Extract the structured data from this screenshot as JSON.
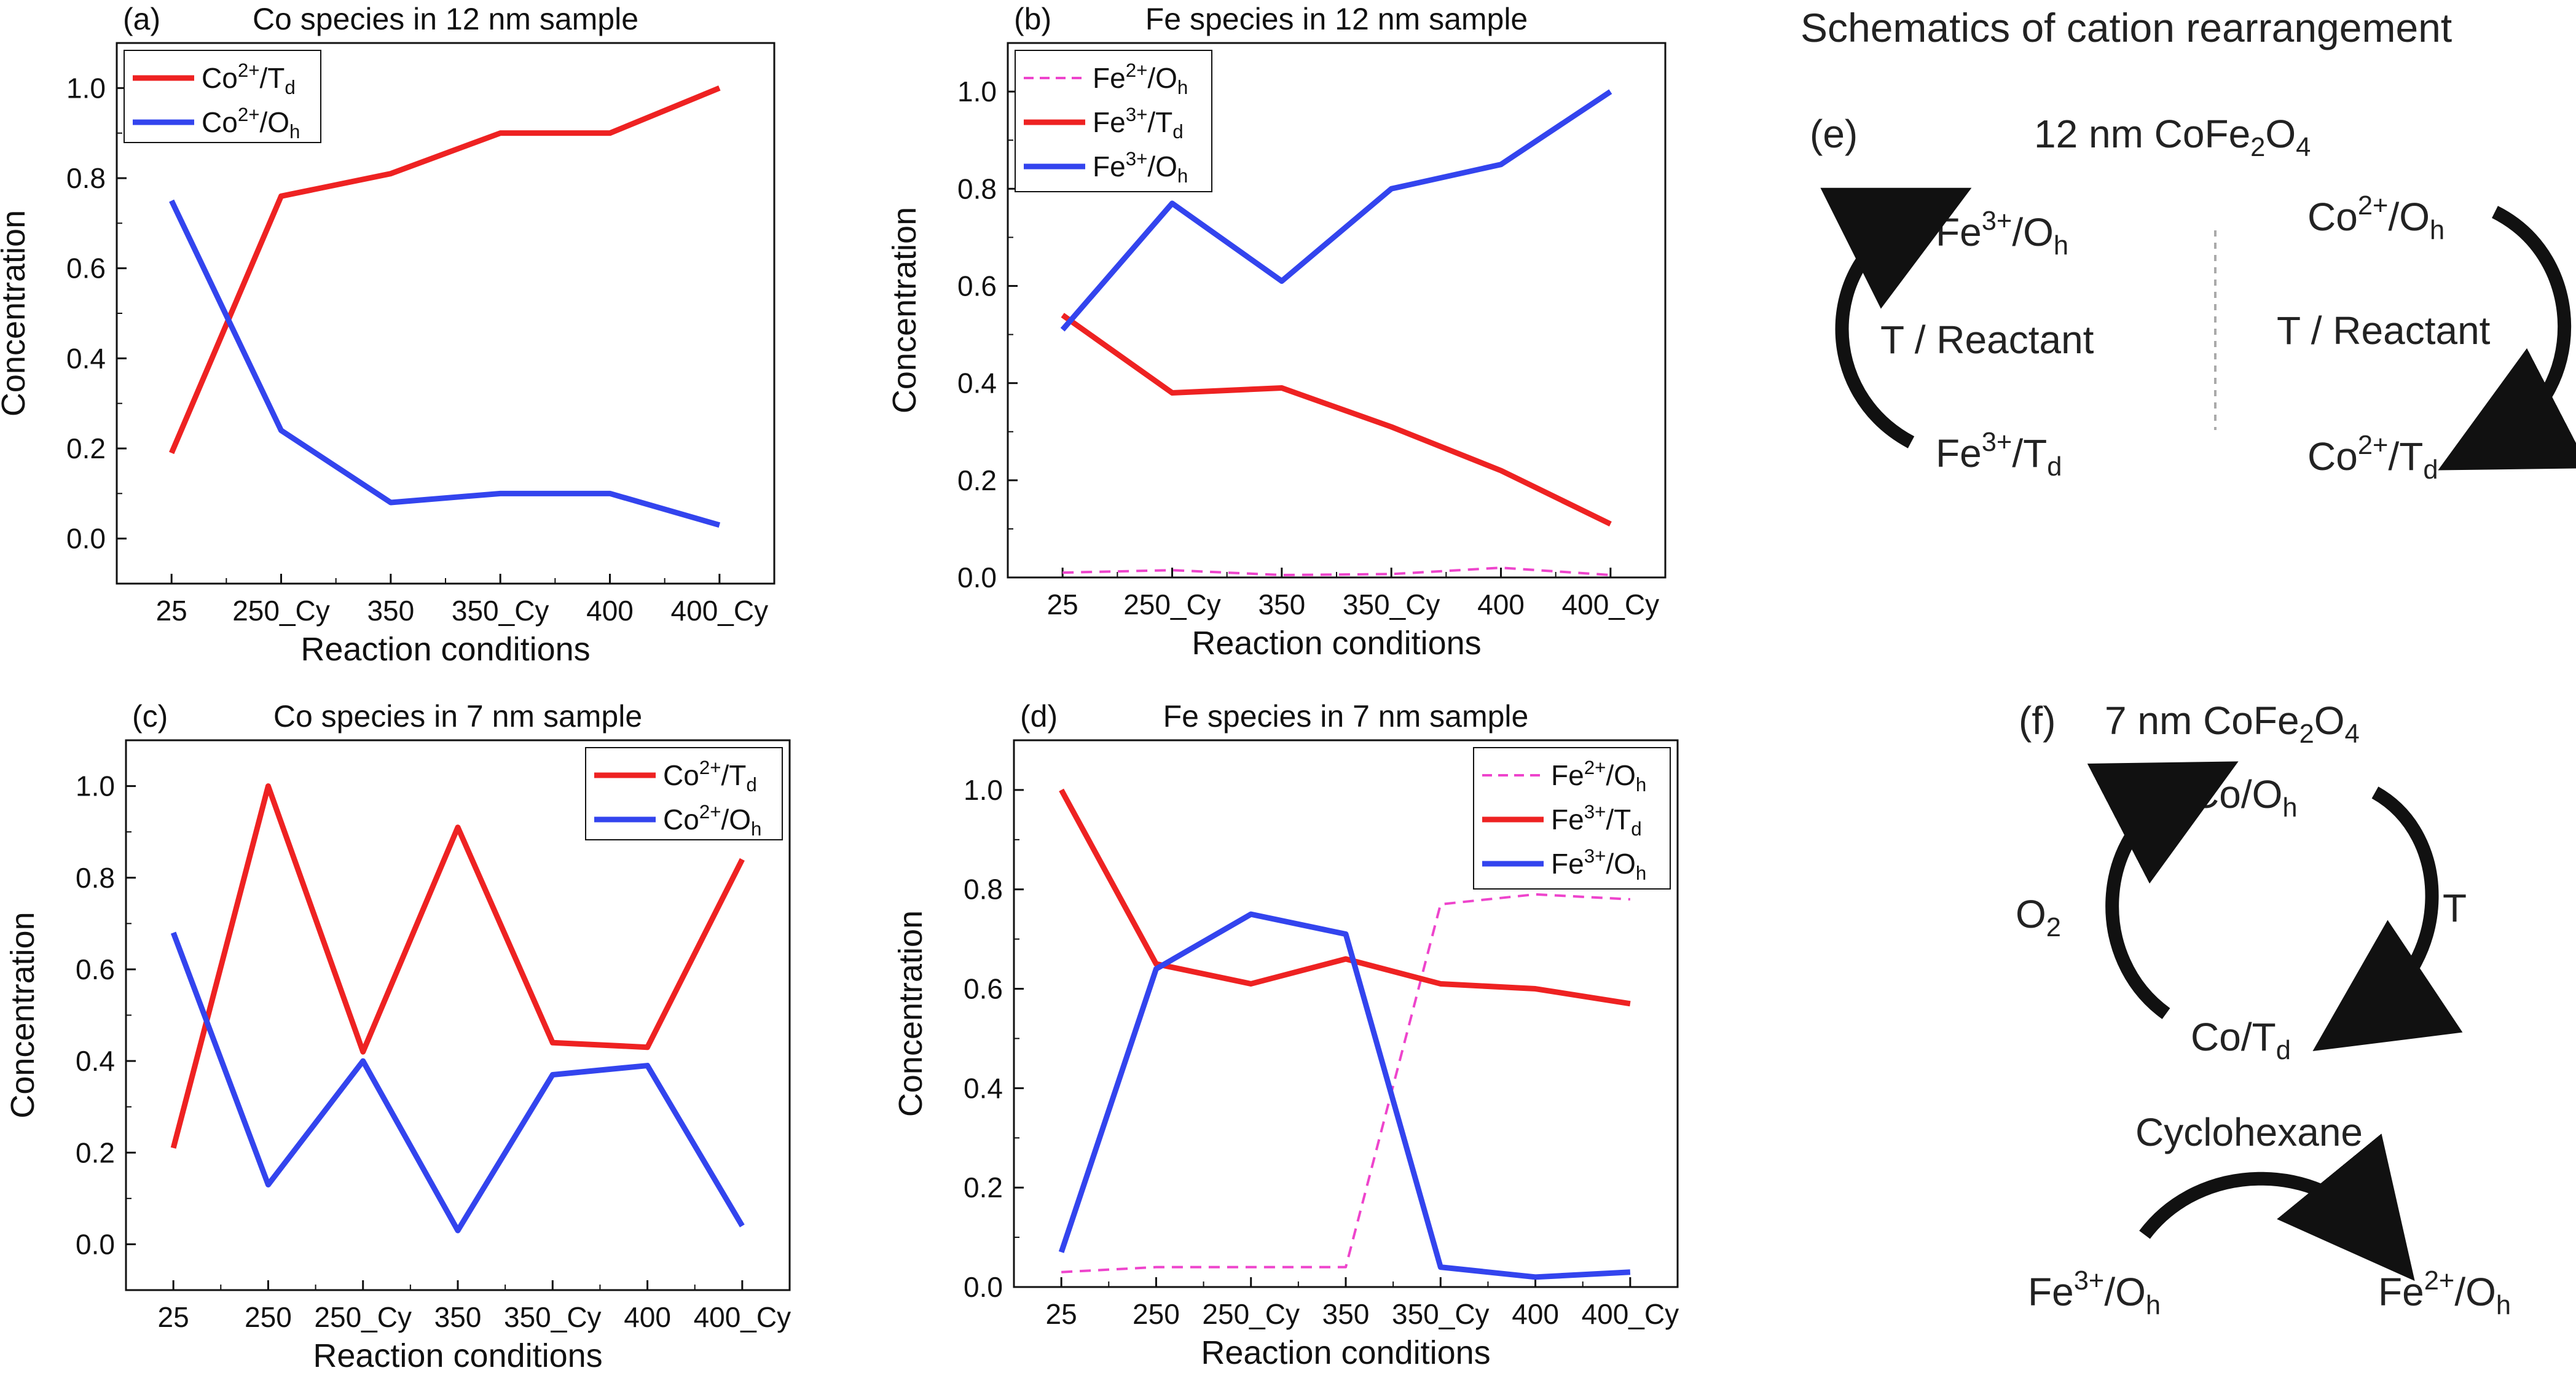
{
  "chart_data": [
    {
      "id": "a",
      "type": "line",
      "panel_letter": "(a)",
      "title": "Co species in 12 nm sample",
      "xlabel": "Reaction conditions",
      "ylabel": "Concentration",
      "categories": [
        "25",
        "250_Cy",
        "350",
        "350_Cy",
        "400",
        "400_Cy"
      ],
      "ylim": [
        -0.1,
        1.1
      ],
      "yticks": [
        "0.0",
        "0.2",
        "0.4",
        "0.6",
        "0.8",
        "1.0"
      ],
      "legend_position": "top-left",
      "series": [
        {
          "name": "Co2+/Td",
          "base": "Co",
          "sup": "2+",
          "sep": "/T",
          "sub": "d",
          "color": "#ee2222",
          "style": "solid",
          "values": [
            0.19,
            0.76,
            0.81,
            0.9,
            0.9,
            1.0
          ]
        },
        {
          "name": "Co2+/Oh",
          "base": "Co",
          "sup": "2+",
          "sep": "/O",
          "sub": "h",
          "color": "#3344ee",
          "style": "solid",
          "values": [
            0.75,
            0.24,
            0.08,
            0.1,
            0.1,
            0.03
          ]
        }
      ]
    },
    {
      "id": "b",
      "type": "line",
      "panel_letter": "(b)",
      "title": "Fe species in 12 nm sample",
      "xlabel": "Reaction conditions",
      "ylabel": "Concentration",
      "categories": [
        "25",
        "250_Cy",
        "350",
        "350_Cy",
        "400",
        "400_Cy"
      ],
      "ylim": [
        0.0,
        1.1
      ],
      "yticks": [
        "0.0",
        "0.2",
        "0.4",
        "0.6",
        "0.8",
        "1.0"
      ],
      "legend_position": "top-left",
      "series": [
        {
          "name": "Fe2+/Oh",
          "base": "Fe",
          "sup": "2+",
          "sep": "/O",
          "sub": "h",
          "color": "#ee44cc",
          "style": "dashed",
          "values": [
            0.01,
            0.015,
            0.005,
            0.007,
            0.02,
            0.005
          ]
        },
        {
          "name": "Fe3+/Td",
          "base": "Fe",
          "sup": "3+",
          "sep": "/T",
          "sub": "d",
          "color": "#ee2222",
          "style": "solid",
          "values": [
            0.54,
            0.38,
            0.39,
            0.31,
            0.22,
            0.11
          ]
        },
        {
          "name": "Fe3+/Oh",
          "base": "Fe",
          "sup": "3+",
          "sep": "/O",
          "sub": "h",
          "color": "#3344ee",
          "style": "solid",
          "values": [
            0.51,
            0.77,
            0.61,
            0.8,
            0.85,
            1.0
          ]
        }
      ]
    },
    {
      "id": "c",
      "type": "line",
      "panel_letter": "(c)",
      "title": "Co species in 7 nm sample",
      "xlabel": "Reaction conditions",
      "ylabel": "Concentration",
      "categories": [
        "25",
        "250",
        "250_Cy",
        "350",
        "350_Cy",
        "400",
        "400_Cy"
      ],
      "ylim": [
        -0.1,
        1.1
      ],
      "yticks": [
        "0.0",
        "0.2",
        "0.4",
        "0.6",
        "0.8",
        "1.0"
      ],
      "legend_position": "top-right",
      "series": [
        {
          "name": "Co2+/Td",
          "base": "Co",
          "sup": "2+",
          "sep": "/T",
          "sub": "d",
          "color": "#ee2222",
          "style": "solid",
          "values": [
            0.21,
            1.0,
            0.42,
            0.91,
            0.44,
            0.43,
            0.84
          ]
        },
        {
          "name": "Co2+/Oh",
          "base": "Co",
          "sup": "2+",
          "sep": "/O",
          "sub": "h",
          "color": "#3344ee",
          "style": "solid",
          "values": [
            0.68,
            0.13,
            0.4,
            0.03,
            0.37,
            0.39,
            0.04
          ]
        }
      ]
    },
    {
      "id": "d",
      "type": "line",
      "panel_letter": "(d)",
      "title": "Fe species in 7 nm sample",
      "xlabel": "Reaction conditions",
      "ylabel": "Concentration",
      "categories": [
        "25",
        "250",
        "250_Cy",
        "350",
        "350_Cy",
        "400",
        "400_Cy"
      ],
      "ylim": [
        0.0,
        1.1
      ],
      "yticks": [
        "0.0",
        "0.2",
        "0.4",
        "0.6",
        "0.8",
        "1.0"
      ],
      "legend_position": "top-right",
      "series": [
        {
          "name": "Fe2+/Oh",
          "base": "Fe",
          "sup": "2+",
          "sep": "/O",
          "sub": "h",
          "color": "#ee44cc",
          "style": "dashed",
          "values": [
            0.03,
            0.04,
            0.04,
            0.04,
            0.77,
            0.79,
            0.78
          ]
        },
        {
          "name": "Fe3+/Td",
          "base": "Fe",
          "sup": "3+",
          "sep": "/T",
          "sub": "d",
          "color": "#ee2222",
          "style": "solid",
          "values": [
            1.0,
            0.65,
            0.61,
            0.66,
            0.61,
            0.6,
            0.57
          ]
        },
        {
          "name": "Fe3+/Oh",
          "base": "Fe",
          "sup": "3+",
          "sep": "/O",
          "sub": "h",
          "color": "#3344ee",
          "style": "solid",
          "values": [
            0.07,
            0.64,
            0.75,
            0.71,
            0.04,
            0.02,
            0.03
          ]
        }
      ]
    }
  ],
  "schematic": {
    "title": "Schematics of cation rearrangement",
    "e": {
      "letter": "(e)",
      "heading": "12 nm CoFe",
      "heading_sub1": "2",
      "heading_mid": "O",
      "heading_sub2": "4",
      "left_top": {
        "base": "Fe",
        "sup": "3+",
        "sep": "/O",
        "sub": "h"
      },
      "left_bottom": {
        "base": "Fe",
        "sup": "3+",
        "sep": "/T",
        "sub": "d"
      },
      "left_label": "T / Reactant",
      "right_top": {
        "base": "Co",
        "sup": "2+",
        "sep": "/O",
        "sub": "h"
      },
      "right_bottom": {
        "base": "Co",
        "sup": "2+",
        "sep": "/T",
        "sub": "d"
      },
      "right_label": "T / Reactant"
    },
    "f": {
      "letter": "(f)",
      "heading": "7 nm CoFe",
      "heading_sub1": "2",
      "heading_mid": "O",
      "heading_sub2": "4",
      "top": {
        "base": "Co/O",
        "sub": "h"
      },
      "bottom": {
        "base": "Co/T",
        "sub": "d"
      },
      "left": {
        "base": "O",
        "sub": "2"
      },
      "right": "T",
      "reaction": "Cyclohexane",
      "from": {
        "base": "Fe",
        "sup": "3+",
        "sep": "/O",
        "sub": "h"
      },
      "to": {
        "base": "Fe",
        "sup": "2+",
        "sep": "/O",
        "sub": "h"
      }
    }
  }
}
